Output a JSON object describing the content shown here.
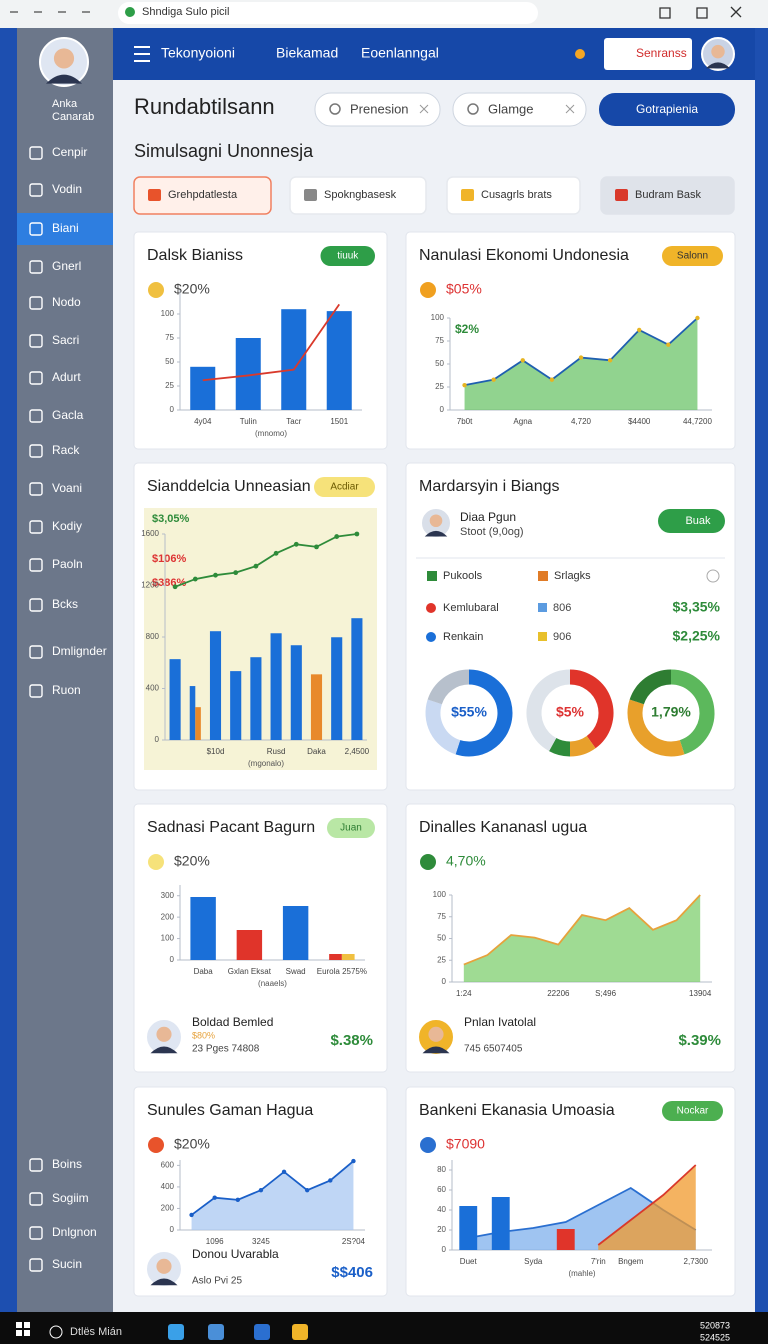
{
  "browser": {
    "title": "Shndiga Sulo picil"
  },
  "nav": {
    "items": [
      "Tekonyoioni",
      "Biekamad",
      "Eoenlanngal"
    ],
    "button": "Senranss"
  },
  "sidebar": {
    "profile": [
      "Anka",
      "Canarab"
    ],
    "items": [
      "Cenpir",
      "Vodin",
      "Biani",
      "Gnerl",
      "Nodo",
      "Sacri",
      "Adurt",
      "Gacla",
      "Rack",
      "Voani",
      "Kodiy",
      "Paoln",
      "Bcks",
      "Dmlignder",
      "Ruon"
    ],
    "bottom": [
      "Boins",
      "Sogiim",
      "Dnlgnon",
      "Sucin"
    ]
  },
  "header": {
    "title": "Rundabtilsann",
    "search": [
      "Prenesion",
      "Glamge"
    ],
    "button": "Gotrapienia",
    "subtitle": "Simulsagni Unonnesja"
  },
  "filters": [
    "Grehpdatlesta",
    "Spokngbasesk",
    "Cusagrls brats",
    "Budram Bask"
  ],
  "cards": [
    {
      "title": "Dalsk Bianiss",
      "badge": "tiuuk",
      "stat": "$20%",
      "chart_data": {
        "type": "combo",
        "categories": [
          "4y04",
          "Tulin",
          "Tacr",
          "1501"
        ],
        "xlabel": "(mnomo)",
        "ylim": [
          0,
          125
        ],
        "yticks": [
          0,
          25,
          50,
          75,
          100
        ],
        "series": [
          {
            "type": "bar",
            "color": "#1a6fd8",
            "values": [
              45,
              75,
              105,
              103
            ]
          },
          {
            "type": "line",
            "color": "#d9392b",
            "values": [
              31,
              36,
              42,
              110
            ]
          }
        ]
      }
    },
    {
      "title": "Nanulasi Ekonomi Undonesia",
      "badge": "Salonn",
      "stat": "$05%",
      "annotation": "$2%",
      "chart_data": {
        "type": "area",
        "categories": [
          "7b0t",
          null,
          "Agna",
          null,
          "4,720",
          null,
          "$4400",
          null,
          "44,7200"
        ],
        "ylim": [
          0,
          100
        ],
        "yticks": [
          0,
          25,
          50,
          75,
          100
        ],
        "series": [
          {
            "type": "area",
            "color": "#6cc46a",
            "line_color": "#1f5fb0",
            "marker_color": "#e6b422",
            "values": [
              27,
              33,
              54,
              33,
              57,
              54,
              87,
              71,
              100
            ]
          }
        ]
      }
    },
    {
      "title": "Sianddelcia Unneasian",
      "badge": "Acdiar",
      "stats": [
        "$3,05%",
        "$106%",
        "$386%"
      ],
      "chart_data": {
        "type": "combo",
        "categories": [
          null,
          null,
          "$10d",
          null,
          null,
          "Rusd",
          null,
          "Daka",
          null,
          "2,4500"
        ],
        "xlabel": "(mgonalo)",
        "ylim": [
          0,
          1600
        ],
        "yticks": [
          0,
          400,
          800,
          1200,
          1600
        ],
        "series": [
          {
            "type": "bar",
            "color": "#1a6fd8",
            "values": [
              628,
              419,
              845,
              535,
              643,
              829,
              736,
              null,
              798,
              946
            ]
          },
          {
            "type": "bar",
            "color": "#e8892b",
            "values": [
              null,
              255,
              null,
              null,
              null,
              null,
              null,
              510,
              null,
              null
            ]
          },
          {
            "type": "line",
            "color": "#2e8b3a",
            "marker_color": "#2e8b3a",
            "values": [
              1190,
              1250,
              1280,
              1300,
              1350,
              1450,
              1520,
              1500,
              1580,
              1600
            ]
          }
        ]
      }
    },
    {
      "title": "Mardarsyin i Biangs",
      "profile": {
        "name": "Diaa Pgun",
        "sub": "Stoot (9,0og)"
      },
      "button": "Buak",
      "legend": [
        {
          "label": "Pukools",
          "color": "#2e8b3a"
        },
        {
          "label": "Srlagks",
          "color": "#e07b27"
        }
      ],
      "rows": [
        {
          "label": "Kemlubaral",
          "count": "806",
          "value": "$3,35%"
        },
        {
          "label": "Renkain",
          "count": "906",
          "value": "$2,25%"
        }
      ],
      "chart_data": {
        "type": "donut",
        "donuts": [
          {
            "center": "$55%",
            "values": [
              55,
              25,
              20
            ],
            "colors": [
              "#1a6fd8",
              "#c9d9f2",
              "#b7c0cc"
            ]
          },
          {
            "center": "$5%",
            "values": [
              40,
              10,
              8,
              42
            ],
            "colors": [
              "#e0342a",
              "#e8a02b",
              "#2e8b3a",
              "#dde3ea"
            ]
          },
          {
            "center": "1,79%",
            "values": [
              45,
              35,
              20
            ],
            "colors": [
              "#5cb85c",
              "#e8a02b",
              "#2e7d32"
            ]
          }
        ]
      }
    },
    {
      "title": "Sadnasi Pacant Bagurn",
      "badge": "Juan",
      "stat": "$20%",
      "person": {
        "name": "Boldad Bemled",
        "note": "$80%",
        "sub": "23 Pges 74808",
        "value": "$.38%"
      },
      "chart_data": {
        "type": "bar",
        "categories": [
          "Daba",
          "Gxlan Eksat",
          "Swad",
          "Eurola 2575%"
        ],
        "xlabel": "(naaels)",
        "ylim": [
          0,
          350
        ],
        "yticks": [
          0,
          100,
          200,
          300
        ],
        "series": [
          {
            "type": "bar",
            "color": "#1a6fd8",
            "values": [
              294,
              null,
              252,
              null
            ]
          },
          {
            "type": "bar",
            "color": "#e0342a",
            "values": [
              null,
              140,
              null,
              28
            ]
          },
          {
            "type": "bar",
            "color": "#f0c040",
            "values": [
              null,
              null,
              null,
              28
            ]
          }
        ]
      }
    },
    {
      "title": "Dinalles Kananasl ugua",
      "stat": "4,70%",
      "person": {
        "name": "Pnlan Ivatolal",
        "sub": "745 6507405",
        "value": "$.39%"
      },
      "chart_data": {
        "type": "area",
        "categories": [
          "1:24",
          null,
          null,
          null,
          "22206",
          null,
          "S;496",
          null,
          null,
          null,
          "13904"
        ],
        "ylim": [
          0,
          100
        ],
        "yticks": [
          0,
          25,
          50,
          75,
          100
        ],
        "series": [
          {
            "type": "area",
            "color": "#7fcf6f",
            "line_color": "#e6a23c",
            "values": [
              20,
              31,
              54,
              51,
              43,
              77,
              71,
              85,
              60,
              71,
              100
            ]
          }
        ]
      }
    },
    {
      "title": "Sunules Gaman Hagua",
      "stat": "$20%",
      "person": {
        "name": "Donou Uvarabla",
        "sub": "Aslo Pvi 25",
        "value": "$$406"
      },
      "chart_data": {
        "type": "area",
        "categories": [
          null,
          "1096",
          null,
          "3245",
          null,
          null,
          null,
          "2S?04"
        ],
        "ylim": [
          0,
          650
        ],
        "yticks": [
          0,
          200,
          400,
          600
        ],
        "series": [
          {
            "type": "area",
            "color": "#a9c8f2",
            "line_color": "#1a5fc8",
            "marker_color": "#1a5fc8",
            "values": [
              140,
              300,
              280,
              370,
              540,
              370,
              460,
              640
            ]
          }
        ]
      }
    },
    {
      "title": "Bankeni Ekanasia Umoasia",
      "badge": "Nockar",
      "stat": "$7090",
      "chart_data": {
        "type": "combo",
        "categories": [
          "Duet",
          null,
          "Syda",
          null,
          "7'rin",
          "Bngem",
          null,
          "2,7300"
        ],
        "xlabel": "(mahle)",
        "ylim": [
          0,
          90
        ],
        "yticks": [
          0,
          20,
          40,
          60,
          80
        ],
        "series": [
          {
            "type": "area",
            "color": "#7fb0ec",
            "line_color": "#2a6fd0",
            "values": [
              12,
              18,
              22,
              28,
              45,
              62,
              40,
              20
            ]
          },
          {
            "type": "area",
            "color": "#f09a2c",
            "line_color": "#d9392b",
            "values": [
              null,
              null,
              null,
              null,
              5,
              30,
              55,
              85
            ]
          },
          {
            "type": "bar",
            "color": "#1a6fd8",
            "values": [
              44,
              53,
              null,
              null,
              null,
              null,
              null,
              null
            ]
          },
          {
            "type": "bar",
            "color": "#e0342a",
            "values": [
              null,
              null,
              null,
              21,
              null,
              null,
              null,
              null
            ]
          }
        ]
      }
    }
  ],
  "taskbar": {
    "search": "Dtlës Mián",
    "clock": [
      "520873",
      "524525"
    ]
  }
}
